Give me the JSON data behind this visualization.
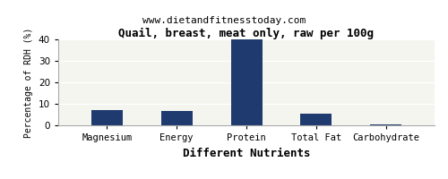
{
  "title": "Quail, breast, meat only, raw per 100g",
  "subtitle": "www.dietandfitnesstoday.com",
  "xlabel": "Different Nutrients",
  "ylabel": "Percentage of RDH (%)",
  "categories": [
    "Magnesium",
    "Energy",
    "Protein",
    "Total Fat",
    "Carbohydrate"
  ],
  "values": [
    7,
    6.5,
    40,
    5.5,
    0.5
  ],
  "bar_color": "#1e3a6e",
  "ylim": [
    0,
    40
  ],
  "yticks": [
    0,
    10,
    20,
    30,
    40
  ],
  "background_color": "#ffffff",
  "plot_bg_color": "#f5f5f0",
  "title_fontsize": 9,
  "subtitle_fontsize": 8,
  "xlabel_fontsize": 9,
  "ylabel_fontsize": 7,
  "tick_fontsize": 7.5
}
